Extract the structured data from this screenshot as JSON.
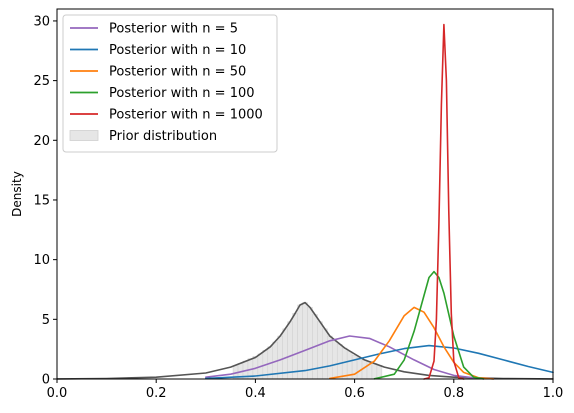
{
  "chart_data": {
    "type": "line",
    "title": "",
    "xlabel": "",
    "ylabel": "Density",
    "xlim": [
      0.0,
      1.0
    ],
    "ylim": [
      0,
      31
    ],
    "x_ticks": [
      "0.0",
      "0.2",
      "0.4",
      "0.6",
      "0.8",
      "1.0"
    ],
    "y_ticks": [
      "0",
      "5",
      "10",
      "15",
      "20",
      "25",
      "30"
    ],
    "grid": false,
    "legend_position": "top-left",
    "legend": [
      {
        "label": "Posterior with n = 5",
        "color": "#9467bd",
        "kind": "line"
      },
      {
        "label": "Posterior with n = 10",
        "color": "#1f77b4",
        "kind": "line"
      },
      {
        "label": "Posterior with n = 50",
        "color": "#ff7f0e",
        "kind": "line"
      },
      {
        "label": "Posterior with n = 100",
        "color": "#2ca02c",
        "kind": "line"
      },
      {
        "label": "Posterior with n = 1000",
        "color": "#d62728",
        "kind": "line"
      },
      {
        "label": "Prior distribution",
        "color": "#d9d9d9",
        "kind": "patch"
      }
    ],
    "series": [
      {
        "name": "Posterior with n = 5",
        "color": "#9467bd",
        "x": [
          0.3,
          0.35,
          0.4,
          0.45,
          0.5,
          0.55,
          0.59,
          0.63,
          0.67,
          0.72,
          0.76,
          0.8,
          0.84,
          0.88
        ],
        "y": [
          0.15,
          0.4,
          0.9,
          1.6,
          2.4,
          3.2,
          3.6,
          3.4,
          2.7,
          1.6,
          0.8,
          0.3,
          0.1,
          0.02
        ]
      },
      {
        "name": "Posterior with n = 10",
        "color": "#1f77b4",
        "x": [
          0.3,
          0.4,
          0.5,
          0.55,
          0.6,
          0.65,
          0.7,
          0.75,
          0.8,
          0.85,
          0.9,
          0.95,
          1.0
        ],
        "y": [
          0.05,
          0.25,
          0.7,
          1.1,
          1.6,
          2.1,
          2.55,
          2.8,
          2.6,
          2.15,
          1.6,
          1.05,
          0.55
        ]
      },
      {
        "name": "Posterior with n = 50",
        "color": "#ff7f0e",
        "x": [
          0.55,
          0.6,
          0.64,
          0.67,
          0.7,
          0.72,
          0.74,
          0.76,
          0.78,
          0.8,
          0.82,
          0.85,
          0.88
        ],
        "y": [
          0.05,
          0.4,
          1.5,
          3.2,
          5.3,
          6.0,
          5.6,
          4.3,
          2.7,
          1.4,
          0.55,
          0.1,
          0.01
        ]
      },
      {
        "name": "Posterior with n = 100",
        "color": "#2ca02c",
        "x": [
          0.64,
          0.68,
          0.7,
          0.72,
          0.74,
          0.75,
          0.76,
          0.77,
          0.78,
          0.8,
          0.82,
          0.84,
          0.86
        ],
        "y": [
          0.02,
          0.4,
          1.6,
          4.0,
          7.0,
          8.5,
          9.0,
          8.5,
          7.2,
          3.6,
          1.0,
          0.15,
          0.01
        ]
      },
      {
        "name": "Posterior with n = 1000",
        "color": "#d62728",
        "x": [
          0.74,
          0.75,
          0.76,
          0.765,
          0.77,
          0.775,
          0.78,
          0.785,
          0.79,
          0.795,
          0.8,
          0.81,
          0.82
        ],
        "y": [
          0.0,
          0.1,
          1.5,
          5.0,
          13.0,
          23.0,
          29.7,
          25.0,
          14.0,
          5.5,
          1.5,
          0.1,
          0.0
        ]
      },
      {
        "name": "Prior distribution",
        "color": "#555555",
        "x": [
          0.0,
          0.1,
          0.2,
          0.3,
          0.35,
          0.4,
          0.43,
          0.45,
          0.47,
          0.48,
          0.49,
          0.5,
          0.51,
          0.52,
          0.53,
          0.55,
          0.58,
          0.62,
          0.66,
          0.7,
          0.75,
          0.8,
          0.9,
          1.0
        ],
        "y": [
          0.01,
          0.04,
          0.15,
          0.5,
          1.0,
          1.8,
          2.7,
          3.6,
          4.8,
          5.5,
          6.2,
          6.4,
          6.0,
          5.4,
          4.8,
          3.6,
          2.6,
          1.6,
          1.0,
          0.6,
          0.3,
          0.15,
          0.04,
          0.01
        ]
      }
    ],
    "prior_histogram": {
      "bin_width": 0.01,
      "bins": [
        [
          0.36,
          1.1
        ],
        [
          0.37,
          1.3
        ],
        [
          0.38,
          1.5
        ],
        [
          0.39,
          1.7
        ],
        [
          0.4,
          1.9
        ],
        [
          0.41,
          2.1
        ],
        [
          0.42,
          2.4
        ],
        [
          0.43,
          2.7
        ],
        [
          0.44,
          3.1
        ],
        [
          0.45,
          3.6
        ],
        [
          0.46,
          4.2
        ],
        [
          0.47,
          4.8
        ],
        [
          0.48,
          5.5
        ],
        [
          0.49,
          6.2
        ],
        [
          0.5,
          6.4
        ],
        [
          0.51,
          6.0
        ],
        [
          0.52,
          5.4
        ],
        [
          0.53,
          4.8
        ],
        [
          0.54,
          4.2
        ],
        [
          0.55,
          3.6
        ],
        [
          0.56,
          3.2
        ],
        [
          0.57,
          2.9
        ],
        [
          0.58,
          2.6
        ],
        [
          0.59,
          2.3
        ],
        [
          0.6,
          2.0
        ],
        [
          0.61,
          1.8
        ],
        [
          0.62,
          1.6
        ],
        [
          0.63,
          1.45
        ],
        [
          0.64,
          1.3
        ],
        [
          0.65,
          1.15
        ]
      ]
    }
  }
}
